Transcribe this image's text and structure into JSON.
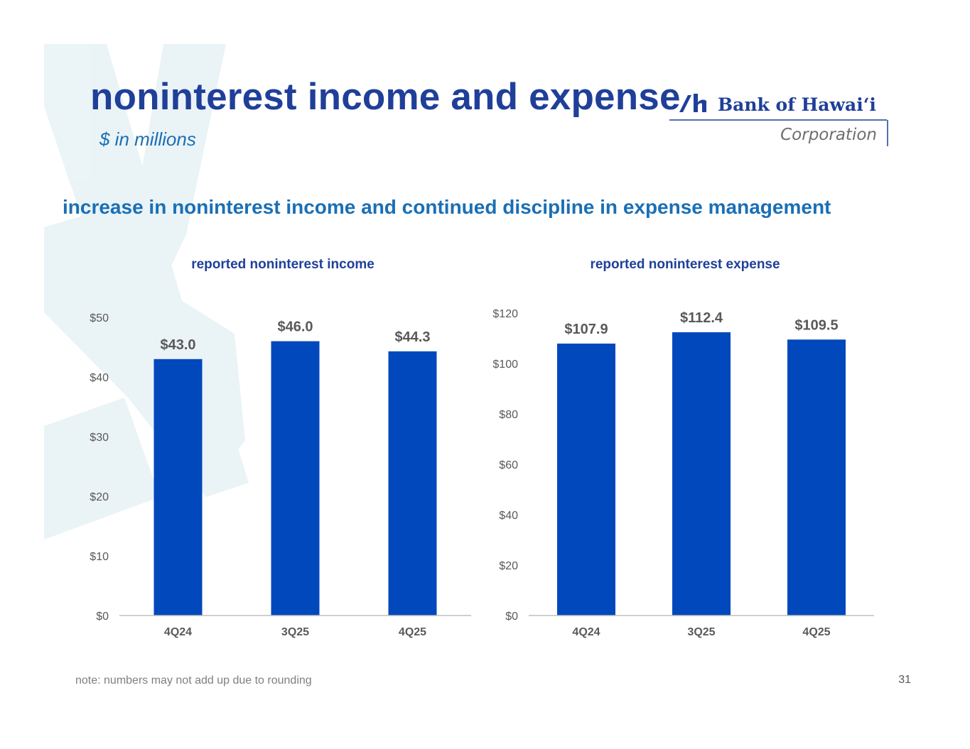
{
  "header": {
    "title": "noninterest income and expense",
    "subtitle": "$ in millions",
    "logo": {
      "name": "Bank of Hawaiʻi",
      "tagline": "Corporation",
      "colors": {
        "primary": "#1f3f99",
        "secondary": "#6d6e71"
      }
    }
  },
  "headline": "increase in noninterest income and continued discipline in expense management",
  "chart_data": [
    {
      "type": "bar",
      "title": "reported noninterest income",
      "categories": [
        "4Q24",
        "3Q25",
        "4Q25"
      ],
      "values": [
        43.0,
        46.0,
        44.3
      ],
      "data_labels": [
        "$43.0",
        "$46.0",
        "$44.3"
      ],
      "yticks": [
        0,
        10,
        20,
        30,
        40,
        50
      ],
      "ytick_labels": [
        "$0",
        "$10",
        "$20",
        "$30",
        "$40",
        "$50"
      ],
      "ylim": [
        0,
        50
      ],
      "xlabel": "",
      "ylabel": "",
      "grid": false,
      "legend": "none",
      "bar_color": "#0048bc"
    },
    {
      "type": "bar",
      "title": "reported noninterest expense",
      "categories": [
        "4Q24",
        "3Q25",
        "4Q25"
      ],
      "values": [
        107.9,
        112.4,
        109.5
      ],
      "data_labels": [
        "$107.9",
        "$112.4",
        "$109.5"
      ],
      "yticks": [
        0,
        20,
        40,
        60,
        80,
        100,
        120
      ],
      "ytick_labels": [
        "$0",
        "$20",
        "$40",
        "$60",
        "$80",
        "$100",
        "$120"
      ],
      "ylim": [
        0,
        120
      ],
      "xlabel": "",
      "ylabel": "",
      "grid": false,
      "legend": "none",
      "bar_color": "#0048bc"
    }
  ],
  "footer": {
    "note": "note: numbers may not add up due to rounding",
    "page_number": "31"
  }
}
